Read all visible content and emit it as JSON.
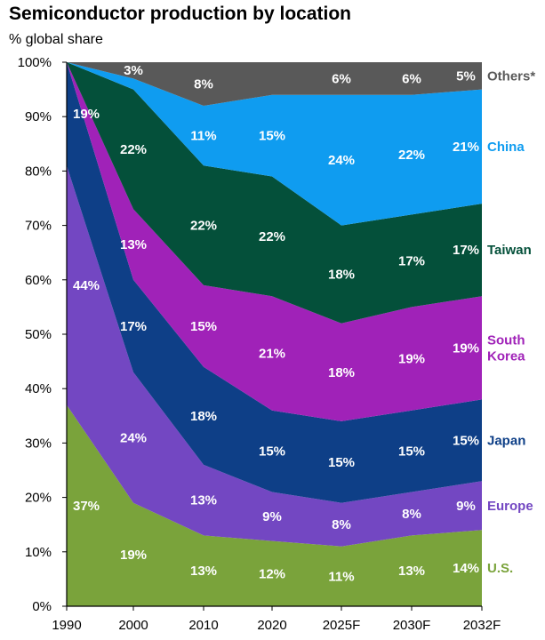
{
  "chart_data": {
    "type": "area",
    "stacked": true,
    "title": "Semiconductor production by location",
    "ylabel": "% global share",
    "categories": [
      "1990",
      "2000",
      "2010",
      "2020",
      "2025F",
      "2030F",
      "2032F"
    ],
    "ylim": [
      0,
      100
    ],
    "y_ticks": [
      "0%",
      "10%",
      "20%",
      "30%",
      "40%",
      "50%",
      "60%",
      "70%",
      "80%",
      "90%",
      "100%"
    ],
    "series": [
      {
        "name": "U.S.",
        "legend": "U.S.",
        "color": "#7aa33b",
        "values": [
          37,
          19,
          13,
          12,
          11,
          13,
          14
        ],
        "labels": [
          "37%",
          "19%",
          "13%",
          "12%",
          "11%",
          "13%",
          "14%"
        ]
      },
      {
        "name": "Europe",
        "legend": "Europe",
        "color": "#7347c2",
        "values": [
          44,
          24,
          13,
          9,
          8,
          8,
          9
        ],
        "labels": [
          "44%",
          "24%",
          "13%",
          "9%",
          "8%",
          "8%",
          "9%"
        ]
      },
      {
        "name": "Japan",
        "legend": "Japan",
        "color": "#0e3f87",
        "values": [
          19,
          17,
          18,
          15,
          15,
          15,
          15
        ],
        "labels": [
          "19%",
          "17%",
          "18%",
          "15%",
          "15%",
          "15%",
          "15%"
        ]
      },
      {
        "name": "South Korea",
        "legend": [
          "South",
          "Korea"
        ],
        "color": "#a022b8",
        "values": [
          0,
          13,
          15,
          21,
          18,
          19,
          19
        ],
        "labels": [
          "",
          "13%",
          "15%",
          "21%",
          "18%",
          "19%",
          "19%"
        ]
      },
      {
        "name": "Taiwan",
        "legend": "Taiwan",
        "color": "#04503a",
        "values": [
          0,
          22,
          22,
          22,
          18,
          17,
          17
        ],
        "labels": [
          "",
          "22%",
          "22%",
          "22%",
          "18%",
          "17%",
          "17%"
        ]
      },
      {
        "name": "China",
        "legend": "China",
        "color": "#0f9cf0",
        "values": [
          0,
          2,
          11,
          15,
          24,
          22,
          21
        ],
        "labels": [
          "",
          "",
          "11%",
          "15%",
          "24%",
          "22%",
          "21%"
        ]
      },
      {
        "name": "Others*",
        "legend": "Others*",
        "color": "#595959",
        "values": [
          0,
          3,
          8,
          6,
          6,
          6,
          5
        ],
        "labels": [
          "",
          "3%",
          "8%",
          "",
          "6%",
          "6%",
          "5%"
        ]
      }
    ]
  }
}
